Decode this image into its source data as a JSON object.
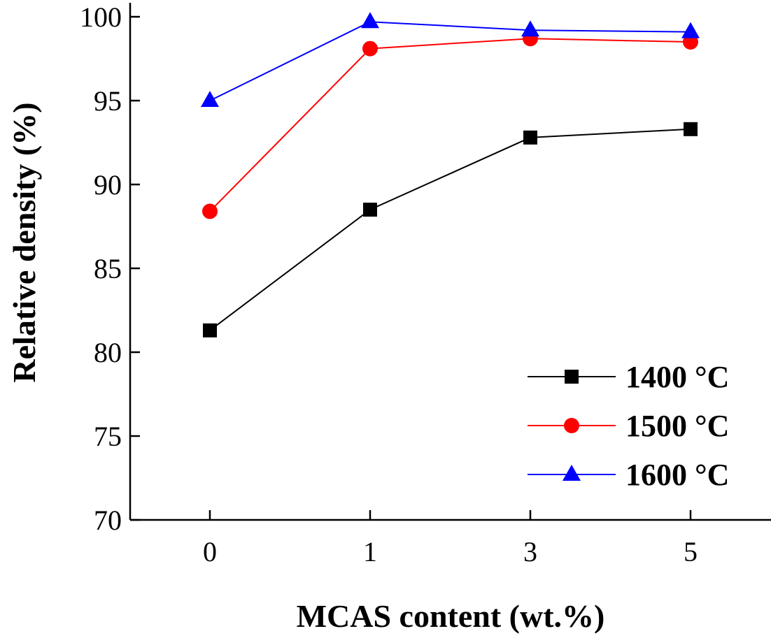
{
  "chart_data": {
    "type": "line",
    "title": "",
    "xlabel": "MCAS content (wt.%)",
    "ylabel": "Relative density (%)",
    "categories": [
      "0",
      "1",
      "3",
      "5"
    ],
    "ylim": [
      70,
      100
    ],
    "yticks": [
      "70",
      "75",
      "80",
      "85",
      "90",
      "95",
      "100"
    ],
    "grid": false,
    "legend_position": "bottom-right",
    "series": [
      {
        "name": "1400 °C",
        "color": "#000000",
        "marker": "square",
        "values": [
          81.3,
          88.5,
          92.8,
          93.3
        ]
      },
      {
        "name": "1500 °C",
        "color": "#ff0000",
        "marker": "circle",
        "values": [
          88.4,
          98.1,
          98.7,
          98.5
        ]
      },
      {
        "name": "1600 °C",
        "color": "#0000ff",
        "marker": "triangle",
        "values": [
          95.0,
          99.7,
          99.2,
          99.1
        ]
      }
    ]
  }
}
